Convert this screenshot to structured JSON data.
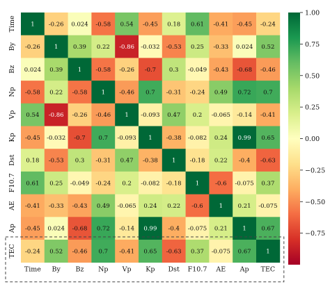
{
  "chart_data": {
    "type": "heatmap",
    "variables": [
      "Time",
      "By",
      "Bz",
      "Np",
      "Vp",
      "Kp",
      "Dst",
      "F10.7",
      "AE",
      "Ap",
      "TEC"
    ],
    "matrix": [
      [
        1,
        -0.26,
        0.024,
        -0.58,
        0.54,
        -0.45,
        0.18,
        0.61,
        -0.41,
        -0.45,
        -0.24
      ],
      [
        -0.26,
        1,
        0.39,
        0.22,
        -0.86,
        -0.032,
        -0.53,
        0.25,
        -0.33,
        0.024,
        0.52
      ],
      [
        0.024,
        0.39,
        1,
        -0.58,
        -0.26,
        -0.7,
        0.3,
        -0.049,
        -0.43,
        -0.68,
        -0.46
      ],
      [
        -0.58,
        0.22,
        -0.58,
        1,
        -0.46,
        0.7,
        -0.31,
        -0.24,
        0.49,
        0.72,
        0.7
      ],
      [
        0.54,
        -0.86,
        -0.26,
        -0.46,
        1,
        -0.093,
        0.47,
        0.2,
        -0.065,
        -0.14,
        -0.41
      ],
      [
        -0.45,
        -0.032,
        -0.7,
        0.7,
        -0.093,
        1,
        -0.38,
        -0.082,
        0.24,
        0.99,
        0.65
      ],
      [
        0.18,
        -0.53,
        0.3,
        -0.31,
        0.47,
        -0.38,
        1,
        -0.18,
        0.22,
        -0.4,
        -0.63
      ],
      [
        0.61,
        0.25,
        -0.049,
        -0.24,
        0.2,
        -0.082,
        -0.18,
        1,
        -0.6,
        -0.075,
        0.37
      ],
      [
        -0.41,
        -0.33,
        -0.43,
        0.49,
        -0.065,
        0.24,
        0.22,
        -0.6,
        1,
        0.21,
        -0.075
      ],
      [
        -0.45,
        0.024,
        -0.68,
        0.72,
        -0.14,
        0.99,
        -0.4,
        -0.075,
        0.21,
        1,
        0.67
      ],
      [
        -0.24,
        0.52,
        -0.46,
        0.7,
        -0.41,
        0.65,
        -0.63,
        0.37,
        -0.075,
        0.67,
        1
      ]
    ],
    "cell_labels": [
      [
        "1",
        "-0.26",
        "0.024",
        "-0.58",
        "0.54",
        "-0.45",
        "0.18",
        "0.61",
        "-0.41",
        "-0.45",
        "-0.24"
      ],
      [
        "-0.26",
        "1",
        "0.39",
        "0.22",
        "-0.86",
        "-0.032",
        "-0.53",
        "0.25",
        "-0.33",
        "0.024",
        "0.52"
      ],
      [
        "0.024",
        "0.39",
        "1",
        "-0.58",
        "-0.26",
        "-0.7",
        "0.3",
        "-0.049",
        "-0.43",
        "-0.68",
        "-0.46"
      ],
      [
        "-0.58",
        "0.22",
        "-0.58",
        "1",
        "-0.46",
        "0.7",
        "-0.31",
        "-0.24",
        "0.49",
        "0.72",
        "0.7"
      ],
      [
        "0.54",
        "-0.86",
        "-0.26",
        "-0.46",
        "1",
        "-0.093",
        "0.47",
        "0.2",
        "-0.065",
        "-0.14",
        "-0.41"
      ],
      [
        "-0.45",
        "-0.032",
        "-0.7",
        "0.7",
        "-0.093",
        "1",
        "-0.38",
        "-0.082",
        "0.24",
        "0.99",
        "0.65"
      ],
      [
        "0.18",
        "-0.53",
        "0.3",
        "-0.31",
        "0.47",
        "-0.38",
        "1",
        "-0.18",
        "0.22",
        "-0.4",
        "-0.63"
      ],
      [
        "0.61",
        "0.25",
        "-0.049",
        "-0.24",
        "0.2",
        "-0.082",
        "-0.18",
        "1",
        "-0.6",
        "-0.075",
        "0.37"
      ],
      [
        "-0.41",
        "-0.33",
        "-0.43",
        "0.49",
        "-0.065",
        "0.24",
        "0.22",
        "-0.6",
        "1",
        "0.21",
        "-0.075"
      ],
      [
        "-0.45",
        "0.024",
        "-0.68",
        "0.72",
        "-0.14",
        "0.99",
        "-0.4",
        "-0.075",
        "0.21",
        "1",
        "0.67"
      ],
      [
        "-0.24",
        "0.52",
        "-0.46",
        "0.7",
        "-0.41",
        "0.65",
        "-0.63",
        "0.37",
        "-0.075",
        "0.67",
        "1"
      ]
    ],
    "colorbar": {
      "range": [
        -1,
        1
      ],
      "ticks": [
        1.0,
        0.75,
        0.5,
        0.25,
        0.0,
        -0.25,
        -0.5,
        -0.75
      ],
      "tick_labels": [
        "1.00",
        "0.75",
        "0.50",
        "0.25",
        "0.00",
        "−0.25",
        "−0.50",
        "−0.75"
      ],
      "colormap": "RdYlGn",
      "colors": [
        "#a50026",
        "#d73027",
        "#f46d43",
        "#fdae61",
        "#fee08b",
        "#ffffbf",
        "#d9ef8b",
        "#a6d96a",
        "#66bd63",
        "#1a9850",
        "#006837"
      ]
    },
    "highlight": {
      "row": "TEC",
      "style": "dashed box"
    },
    "title": "",
    "xlabel": "",
    "ylabel": ""
  }
}
